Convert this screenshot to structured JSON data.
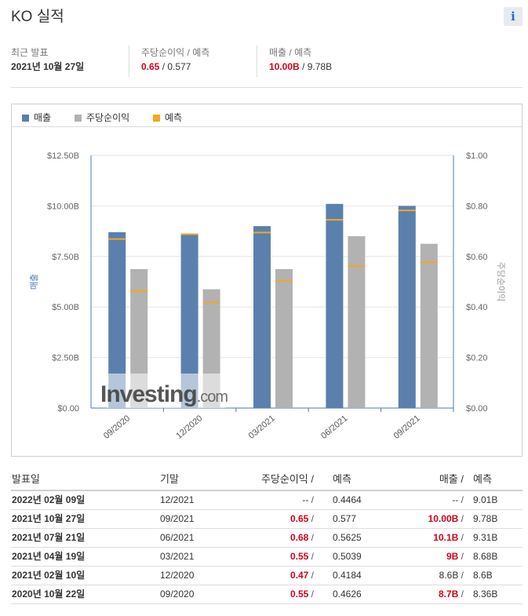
{
  "header": {
    "title": "KO 실적",
    "info_icon": "i"
  },
  "summary": {
    "latest": {
      "label": "최근 발표",
      "value": "2021년 10월 27일"
    },
    "eps": {
      "label": "주당순이익 / 예측",
      "actual": "0.65",
      "sep": " / ",
      "forecast": "0.577"
    },
    "revenue": {
      "label": "매출 / 예측",
      "actual": "10.00B",
      "sep": " / ",
      "forecast": "9.78B"
    }
  },
  "legend": [
    {
      "label": "매출",
      "color": "#5b80ad"
    },
    {
      "label": "주당순이익",
      "color": "#b2b2b2"
    },
    {
      "label": "예측",
      "color": "#f5a623"
    }
  ],
  "chart_data": {
    "type": "bar",
    "categories": [
      "09/2020",
      "12/2020",
      "03/2021",
      "06/2021",
      "09/2021"
    ],
    "series": [
      {
        "name": "매출",
        "axis": "left",
        "color": "#5b80ad",
        "values": [
          8.7,
          8.6,
          9.0,
          10.1,
          10.0
        ],
        "forecast": [
          8.36,
          8.6,
          8.68,
          9.31,
          9.78
        ]
      },
      {
        "name": "주당순이익",
        "axis": "right",
        "color": "#b2b2b2",
        "values": [
          0.55,
          0.47,
          0.55,
          0.68,
          0.65
        ],
        "forecast": [
          0.4626,
          0.4184,
          0.5039,
          0.5625,
          0.577
        ]
      }
    ],
    "forecast_color": "#f5a623",
    "ylabel": "매출",
    "ylabel_right": "주당순이익",
    "ylim": [
      0,
      12.5
    ],
    "ylim_right": [
      0,
      1.0
    ],
    "yticks": [
      "$0.00",
      "$2.50B",
      "$5.00B",
      "$7.50B",
      "$10.00B",
      "$12.50B"
    ],
    "yticks_right": [
      "$0.00",
      "$0.20",
      "$0.40",
      "$0.60",
      "$0.80",
      "$1.00"
    ],
    "watermark": "Investing.com",
    "grid": true
  },
  "table": {
    "headers": {
      "date": "발표일",
      "period": "기말",
      "eps": "주당순이익 /",
      "eps_forecast": "예측",
      "revenue": "매출 /",
      "revenue_forecast": "예측"
    },
    "rows": [
      {
        "date": "2022년 02월 09일",
        "period": "12/2021",
        "eps": "--",
        "eps_forecast": "0.4464",
        "revenue": "--",
        "revenue_forecast": "9.01B",
        "highlight": false
      },
      {
        "date": "2021년 10월 27일",
        "period": "09/2021",
        "eps": "0.65",
        "eps_forecast": "0.577",
        "revenue": "10.00B",
        "revenue_forecast": "9.78B",
        "highlight": true
      },
      {
        "date": "2021년 07월 21일",
        "period": "06/2021",
        "eps": "0.68",
        "eps_forecast": "0.5625",
        "revenue": "10.1B",
        "revenue_forecast": "9.31B",
        "highlight": true
      },
      {
        "date": "2021년 04월 19일",
        "period": "03/2021",
        "eps": "0.55",
        "eps_forecast": "0.5039",
        "revenue": "9B",
        "revenue_forecast": "8.68B",
        "highlight": true
      },
      {
        "date": "2021년 02월 10일",
        "period": "12/2020",
        "eps": "0.47",
        "eps_forecast": "0.4184",
        "revenue": "8.6B",
        "revenue_forecast": "8.6B",
        "highlight": "eps"
      },
      {
        "date": "2020년 10월 22일",
        "period": "09/2020",
        "eps": "0.55",
        "eps_forecast": "0.4626",
        "revenue": "8.7B",
        "revenue_forecast": "8.36B",
        "highlight": true
      }
    ]
  }
}
